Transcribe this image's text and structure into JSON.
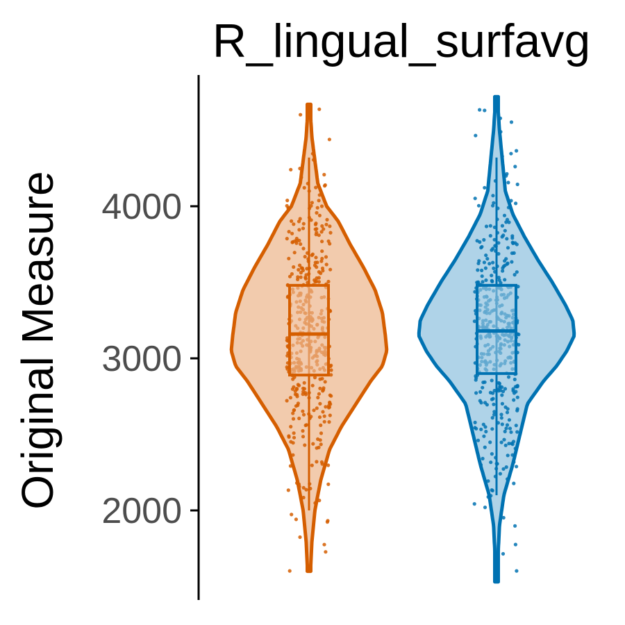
{
  "chart_data": {
    "type": "violin",
    "title": "R_lingual_surfavg",
    "ylabel": "Original Measure",
    "xlabel": "",
    "ylim": [
      1450,
      4800
    ],
    "yticks": [
      {
        "value": 2000,
        "label": "2000"
      },
      {
        "value": 3000,
        "label": "3000"
      },
      {
        "value": 4000,
        "label": "4000"
      }
    ],
    "grid": false,
    "legend": "none",
    "groups": [
      {
        "color": "#d55e00",
        "fill": "#f2cbad",
        "range": [
          1600,
          4670
        ],
        "box": {
          "q1": 2890,
          "median": 3160,
          "q3": 3480,
          "whisker_low": 2000,
          "whisker_high": 4320
        },
        "density": [
          [
            1600,
            0.01
          ],
          [
            1800,
            0.02
          ],
          [
            2000,
            0.04
          ],
          [
            2200,
            0.08
          ],
          [
            2400,
            0.14
          ],
          [
            2550,
            0.22
          ],
          [
            2700,
            0.32
          ],
          [
            2850,
            0.42
          ],
          [
            2950,
            0.5
          ],
          [
            3050,
            0.53
          ],
          [
            3150,
            0.52
          ],
          [
            3300,
            0.5
          ],
          [
            3450,
            0.45
          ],
          [
            3600,
            0.37
          ],
          [
            3750,
            0.28
          ],
          [
            3900,
            0.2
          ],
          [
            4000,
            0.12
          ],
          [
            4150,
            0.06
          ],
          [
            4300,
            0.04
          ],
          [
            4450,
            0.02
          ],
          [
            4670,
            0.005
          ]
        ]
      },
      {
        "color": "#0072b2",
        "fill": "#afd3e8",
        "range": [
          1530,
          4720
        ],
        "box": {
          "q1": 2900,
          "median": 3180,
          "q3": 3480,
          "whisker_low": 2100,
          "whisker_high": 4320
        },
        "density": [
          [
            1530,
            0.005
          ],
          [
            1700,
            0.01
          ],
          [
            1900,
            0.02
          ],
          [
            2100,
            0.05
          ],
          [
            2300,
            0.11
          ],
          [
            2500,
            0.16
          ],
          [
            2700,
            0.21
          ],
          [
            2850,
            0.32
          ],
          [
            2950,
            0.41
          ],
          [
            3050,
            0.48
          ],
          [
            3150,
            0.53
          ],
          [
            3250,
            0.52
          ],
          [
            3350,
            0.47
          ],
          [
            3500,
            0.38
          ],
          [
            3650,
            0.28
          ],
          [
            3800,
            0.19
          ],
          [
            3950,
            0.11
          ],
          [
            4100,
            0.06
          ],
          [
            4300,
            0.04
          ],
          [
            4500,
            0.02
          ],
          [
            4720,
            0.005
          ]
        ]
      }
    ]
  }
}
